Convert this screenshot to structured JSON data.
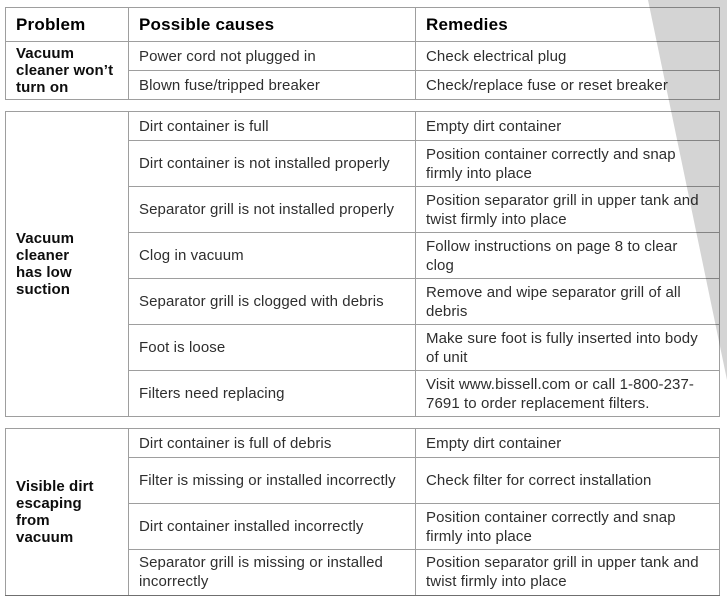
{
  "table": {
    "columns": [
      "Problem",
      "Possible causes",
      "Remedies"
    ],
    "sections": [
      {
        "problem": "Vacuum\ncleaner won’t\nturn on",
        "rows": [
          {
            "cause": "Power cord not plugged in",
            "remedy": "Check electrical plug"
          },
          {
            "cause": "Blown fuse/tripped breaker",
            "remedy": "Check/replace fuse or reset breaker"
          }
        ]
      },
      {
        "problem": "Vacuum\ncleaner\nhas low\nsuction",
        "rows": [
          {
            "cause": "Dirt container is full",
            "remedy": "Empty dirt container"
          },
          {
            "cause": "Dirt container is not installed properly",
            "remedy": "Position container correctly and snap firmly into place"
          },
          {
            "cause": "Separator grill is not installed properly",
            "remedy": "Position separator grill in upper tank and twist firmly into place"
          },
          {
            "cause": "Clog in vacuum",
            "remedy": "Follow instructions on page 8 to clear clog"
          },
          {
            "cause": "Separator grill is clogged with debris",
            "remedy": "Remove and wipe separator grill of all debris"
          },
          {
            "cause": "Foot is loose",
            "remedy": "Make sure foot is fully inserted into body of unit"
          },
          {
            "cause": "Filters need replacing",
            "remedy": "Visit www.bissell.com or call 1-800-237-7691 to order replacement filters."
          }
        ]
      },
      {
        "problem": "Visible dirt\nescaping from\nvacuum",
        "rows": [
          {
            "cause": "Dirt container is full of debris",
            "remedy": "Empty dirt container"
          },
          {
            "cause": "Filter is missing or installed incorrectly",
            "remedy": "Check filter for correct installation"
          },
          {
            "cause": "Dirt container installed incorrectly",
            "remedy": "Position container correctly and snap firmly into place"
          },
          {
            "cause": "Separator grill is missing or installed incorrectly",
            "remedy": "Position separator grill in upper tank and twist firmly into place"
          }
        ]
      }
    ]
  },
  "colors": {
    "border_gray": "#9e9e9e",
    "page_curl_gray": "#d2d2d2",
    "text_dark": "#2e2e2e"
  }
}
